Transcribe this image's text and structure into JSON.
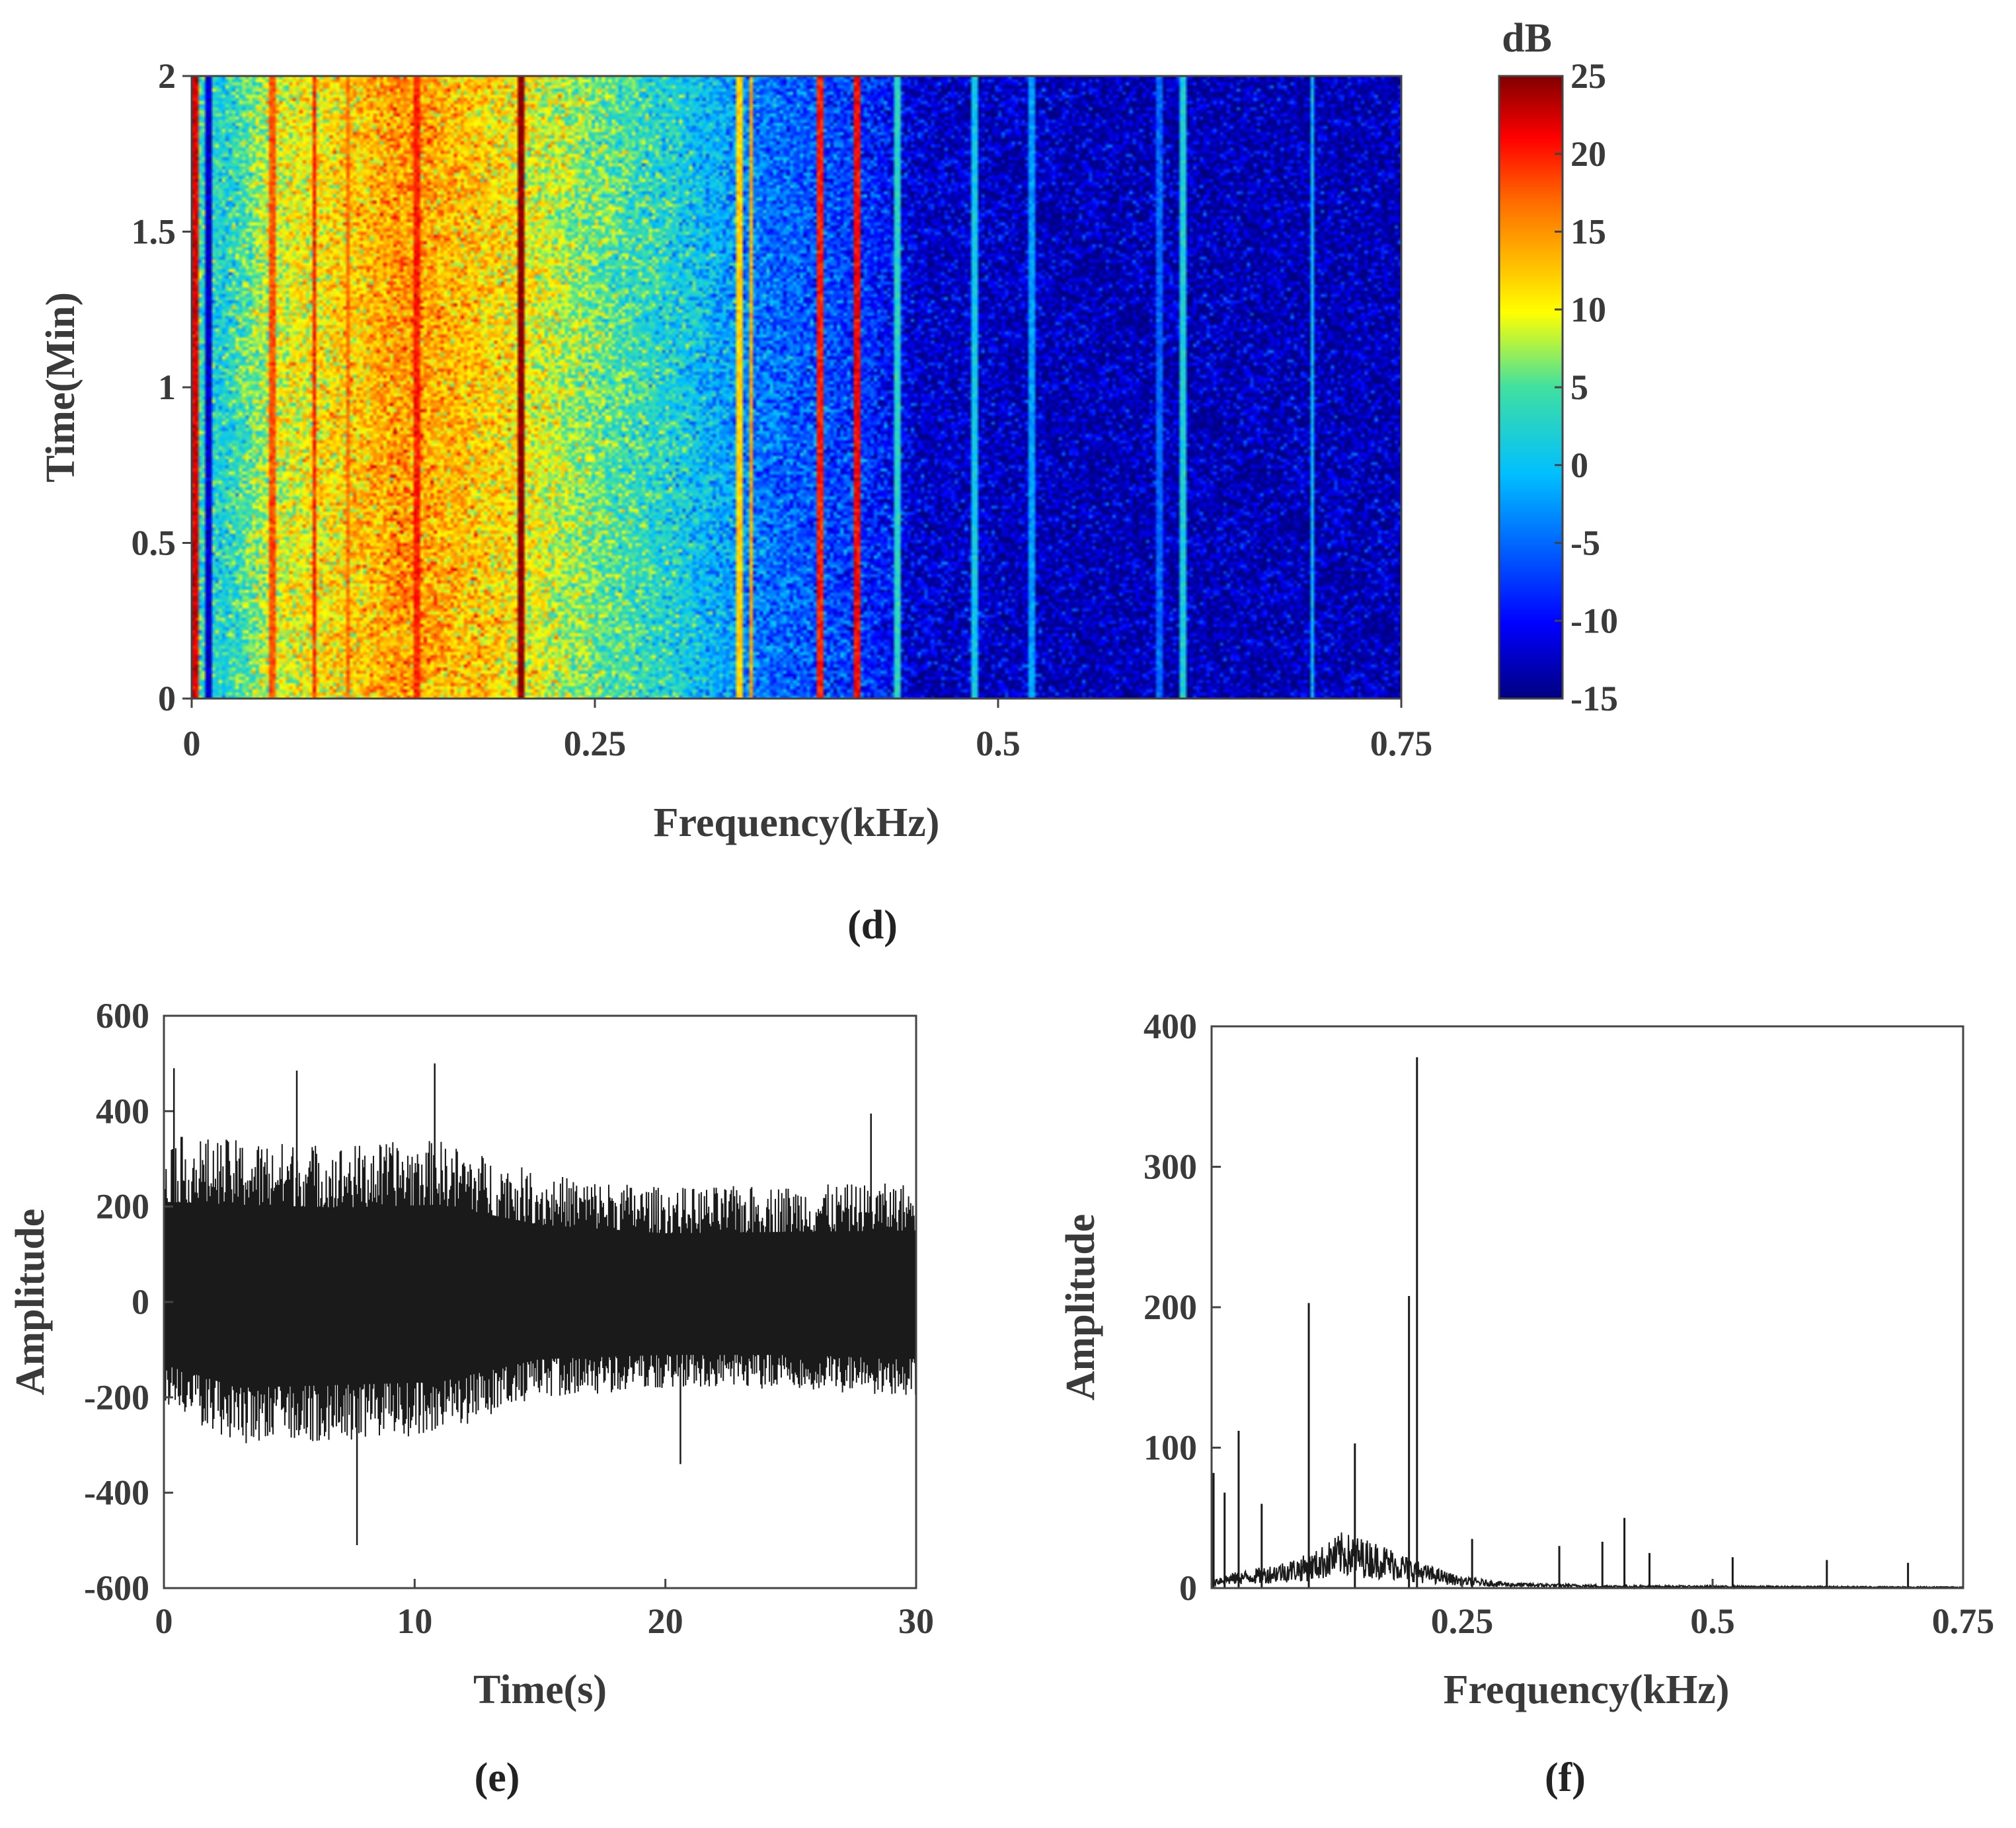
{
  "chart_data": [
    {
      "id": "d",
      "type": "heatmap",
      "panel_label": "(d)",
      "xlabel": "Frequency(kHz)",
      "ylabel": "Time(Min)",
      "xlim": [
        0,
        0.75
      ],
      "ylim": [
        0,
        2
      ],
      "xticks": [
        0,
        0.25,
        0.5,
        0.75
      ],
      "xtick_labels": [
        "0",
        "0.25",
        "0.5",
        "0.75"
      ],
      "yticks": [
        0,
        0.5,
        1,
        1.5,
        2
      ],
      "ytick_labels": [
        "0",
        "0.5",
        "1",
        "1.5",
        "2"
      ],
      "colorbar": {
        "label": "dB",
        "range": [
          -15,
          25
        ],
        "ticks": [
          25,
          20,
          15,
          10,
          5,
          0,
          -5,
          -10,
          -15
        ],
        "tick_labels": [
          "25",
          "20",
          "15",
          "10",
          "5",
          "0",
          "-5",
          "-10",
          "-15"
        ]
      },
      "spectral_envelope_db": [
        {
          "f": 0.0,
          "db": 4
        },
        {
          "f": 0.02,
          "db": 2
        },
        {
          "f": 0.05,
          "db": 9
        },
        {
          "f": 0.1,
          "db": 12
        },
        {
          "f": 0.13,
          "db": 15
        },
        {
          "f": 0.2,
          "db": 11
        },
        {
          "f": 0.25,
          "db": 6
        },
        {
          "f": 0.3,
          "db": 2
        },
        {
          "f": 0.35,
          "db": -4
        },
        {
          "f": 0.42,
          "db": -8
        },
        {
          "f": 0.45,
          "db": -12
        },
        {
          "f": 0.55,
          "db": -13
        },
        {
          "f": 0.75,
          "db": -13
        }
      ],
      "tonal_lines_db": [
        {
          "f": 0.002,
          "db": 22
        },
        {
          "f": 0.01,
          "db": -12
        },
        {
          "f": 0.05,
          "db": 18
        },
        {
          "f": 0.076,
          "db": 20
        },
        {
          "f": 0.097,
          "db": 17
        },
        {
          "f": 0.14,
          "db": 20
        },
        {
          "f": 0.205,
          "db": 25
        },
        {
          "f": 0.34,
          "db": 12
        },
        {
          "f": 0.347,
          "db": 14
        },
        {
          "f": 0.39,
          "db": 20
        },
        {
          "f": 0.412,
          "db": 21
        },
        {
          "f": 0.437,
          "db": 3
        },
        {
          "f": 0.485,
          "db": 1
        },
        {
          "f": 0.52,
          "db": -2
        },
        {
          "f": 0.6,
          "db": -5
        },
        {
          "f": 0.614,
          "db": 2
        },
        {
          "f": 0.695,
          "db": 0
        }
      ]
    },
    {
      "id": "e",
      "type": "line",
      "panel_label": "(e)",
      "xlabel": "Time(s)",
      "ylabel": "Amplitude",
      "xlim": [
        0,
        30
      ],
      "ylim": [
        -600,
        600
      ],
      "xticks": [
        0,
        10,
        20,
        30
      ],
      "xtick_labels": [
        "0",
        "10",
        "20",
        "30"
      ],
      "yticks": [
        600,
        400,
        200,
        0,
        -200,
        -400,
        -600
      ],
      "ytick_labels": [
        "600",
        "400",
        "200",
        "0",
        "-200",
        "-400",
        "-600"
      ],
      "envelope": [
        {
          "t": 0,
          "upper": 350,
          "lower": -220
        },
        {
          "t": 3,
          "upper": 340,
          "lower": -300
        },
        {
          "t": 7,
          "upper": 330,
          "lower": -290
        },
        {
          "t": 11,
          "upper": 340,
          "lower": -280
        },
        {
          "t": 15,
          "upper": 270,
          "lower": -200
        },
        {
          "t": 20,
          "upper": 240,
          "lower": -185
        },
        {
          "t": 25,
          "upper": 245,
          "lower": -185
        },
        {
          "t": 30,
          "upper": 250,
          "lower": -200
        }
      ],
      "peaks": [
        {
          "t": 0.4,
          "v": 490
        },
        {
          "t": 5.3,
          "v": 485
        },
        {
          "t": 10.8,
          "v": 500
        },
        {
          "t": 7.7,
          "v": -510
        },
        {
          "t": 28.2,
          "v": 395
        },
        {
          "t": 20.6,
          "v": -340
        }
      ]
    },
    {
      "id": "f",
      "type": "line",
      "panel_label": "(f)",
      "xlabel": "Frequency(kHz)",
      "ylabel": "Amplitude",
      "xlim": [
        0,
        0.75
      ],
      "ylim": [
        0,
        400
      ],
      "xticks": [
        0.25,
        0.5,
        0.75
      ],
      "xtick_labels": [
        "0.25",
        "0.5",
        "0.75"
      ],
      "yticks": [
        0,
        100,
        200,
        300,
        400
      ],
      "ytick_labels": [
        "0",
        "100",
        "200",
        "300",
        "400"
      ],
      "noise_envelope": [
        {
          "f": 0.0,
          "a": 8
        },
        {
          "f": 0.05,
          "a": 15
        },
        {
          "f": 0.1,
          "a": 25
        },
        {
          "f": 0.13,
          "a": 40
        },
        {
          "f": 0.17,
          "a": 32
        },
        {
          "f": 0.21,
          "a": 18
        },
        {
          "f": 0.25,
          "a": 8
        },
        {
          "f": 0.3,
          "a": 4
        },
        {
          "f": 0.4,
          "a": 2
        },
        {
          "f": 0.75,
          "a": 1
        }
      ],
      "peaks": [
        {
          "f": 0.002,
          "a": 82
        },
        {
          "f": 0.013,
          "a": 68
        },
        {
          "f": 0.027,
          "a": 112
        },
        {
          "f": 0.05,
          "a": 60
        },
        {
          "f": 0.097,
          "a": 203
        },
        {
          "f": 0.143,
          "a": 103
        },
        {
          "f": 0.197,
          "a": 208
        },
        {
          "f": 0.205,
          "a": 378
        },
        {
          "f": 0.26,
          "a": 35
        },
        {
          "f": 0.347,
          "a": 30
        },
        {
          "f": 0.39,
          "a": 33
        },
        {
          "f": 0.412,
          "a": 50
        },
        {
          "f": 0.437,
          "a": 25
        },
        {
          "f": 0.52,
          "a": 22
        },
        {
          "f": 0.614,
          "a": 20
        },
        {
          "f": 0.695,
          "a": 18
        }
      ]
    }
  ]
}
